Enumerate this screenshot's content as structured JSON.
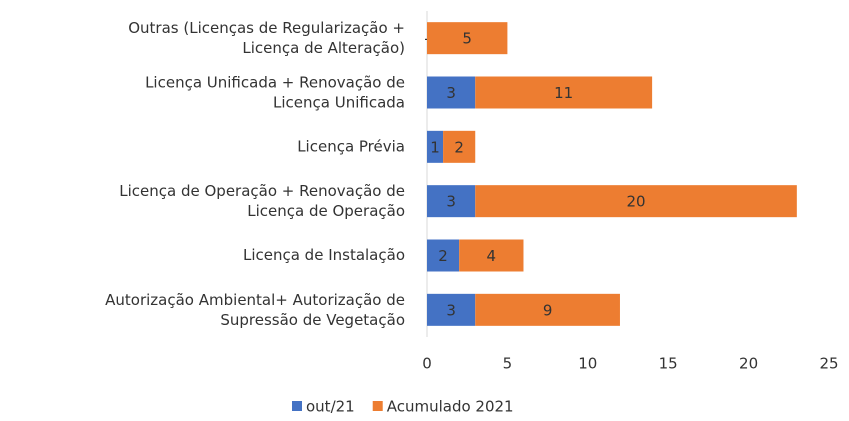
{
  "chart_data": {
    "type": "stacked_barh",
    "categories": [
      "Outras (Licenças de Regularização +\nLicença de Alteração)",
      "Licença Unificada + Renovação de\nLicença Unificada",
      "Licença Prévia",
      "Licença de Operação + Renovação de\nLicença de Operação",
      "Licença de Instalação",
      "Autorização Ambiental+ Autorização de\nSupressão de Vegetação"
    ],
    "series": [
      {
        "name": "out/21",
        "color": "#4472c4",
        "values": [
          0,
          3,
          1,
          3,
          2,
          3
        ],
        "value_labels": [
          "-",
          "3",
          "1",
          "3",
          "2",
          "3"
        ]
      },
      {
        "name": "Acumulado 2021",
        "color": "#ed7d31",
        "values": [
          5,
          11,
          2,
          20,
          4,
          9
        ]
      }
    ],
    "xlim": [
      0,
      25
    ],
    "xticks": [
      0,
      5,
      10,
      15,
      20,
      25
    ],
    "grid": false,
    "legend": "bottom"
  }
}
